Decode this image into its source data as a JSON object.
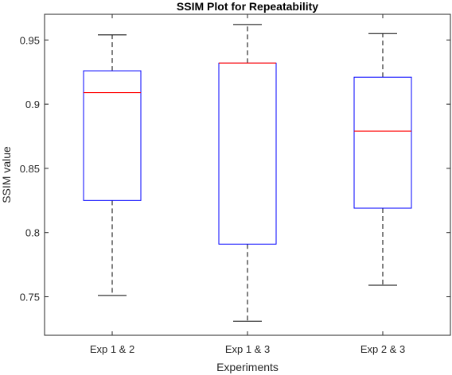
{
  "chart_data": {
    "type": "box",
    "title": "SSIM Plot for Repeatability",
    "xlabel": "Experiments",
    "ylabel": "SSIM value",
    "ylim": [
      0.72,
      0.97
    ],
    "yticks": [
      0.75,
      0.8,
      0.85,
      0.9,
      0.95
    ],
    "ytick_labels": [
      "0.75",
      "0.8",
      "0.85",
      "0.9",
      "0.95"
    ],
    "categories": [
      "Exp 1 & 2",
      "Exp 1 & 3",
      "Exp 2 & 3"
    ],
    "boxes": [
      {
        "whisker_low": 0.751,
        "q1": 0.825,
        "median": 0.909,
        "q3": 0.926,
        "whisker_high": 0.954
      },
      {
        "whisker_low": 0.731,
        "q1": 0.791,
        "median": 0.932,
        "q3": 0.932,
        "whisker_high": 0.962
      },
      {
        "whisker_low": 0.759,
        "q1": 0.819,
        "median": 0.879,
        "q3": 0.921,
        "whisker_high": 0.955
      }
    ],
    "grid": false,
    "colors": {
      "box": "#0000ff",
      "median": "#ff0000",
      "whisker": "#000000",
      "axes": "#262626"
    }
  }
}
